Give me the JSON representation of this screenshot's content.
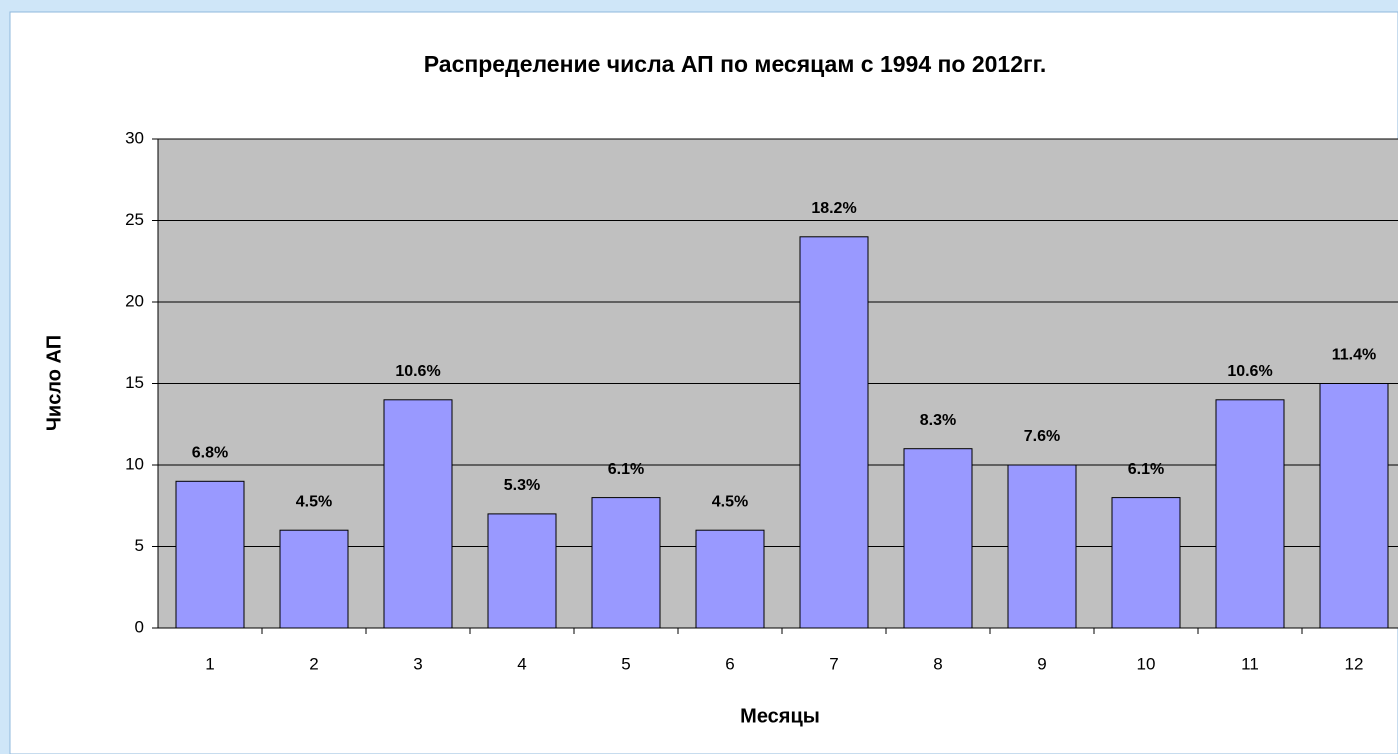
{
  "chart_data": {
    "type": "bar",
    "title": "Распределение числа АП по месяцам с 1994 по 2012гг.",
    "x_label": "Месяцы",
    "y_label": "Число АП",
    "categories": [
      "1",
      "2",
      "3",
      "4",
      "5",
      "6",
      "7",
      "8",
      "9",
      "10",
      "11",
      "12"
    ],
    "values": [
      9,
      6,
      14,
      7,
      8,
      6,
      24,
      11,
      10,
      8,
      14,
      15
    ],
    "data_labels": [
      "6.8%",
      "4.5%",
      "10.6%",
      "5.3%",
      "6.1%",
      "4.5%",
      "18.2%",
      "8.3%",
      "7.6%",
      "6.1%",
      "10.6%",
      "11.4%"
    ],
    "color": "#9999ff",
    "ylim": [
      0,
      30
    ],
    "yticks": [
      0,
      5,
      10,
      15,
      20,
      25,
      30
    ],
    "grid": true
  }
}
